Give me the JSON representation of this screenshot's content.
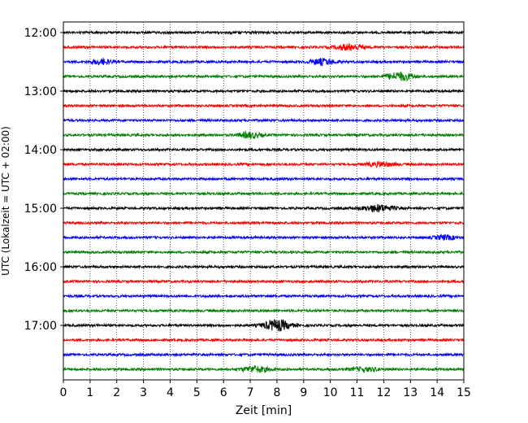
{
  "chart_data": {
    "type": "line",
    "xlabel": "Zeit  [min]",
    "ylabel": "UTC (Lokalzeit = UTC + 02:00)",
    "xlim": [
      0,
      15
    ],
    "x_ticks": [
      0,
      1,
      2,
      3,
      4,
      5,
      6,
      7,
      8,
      9,
      10,
      11,
      12,
      13,
      14,
      15
    ],
    "x_tick_labels": [
      "0",
      "1",
      "2",
      "3",
      "4",
      "5",
      "6",
      "7",
      "8",
      "9",
      "10",
      "11",
      "12",
      "13",
      "14",
      "15"
    ],
    "y_tick_labels": [
      "12:00",
      "13:00",
      "14:00",
      "15:00",
      "16:00",
      "17:00"
    ],
    "y_tick_rows": [
      0,
      4,
      8,
      12,
      16,
      20
    ],
    "grid": "vertical-dotted",
    "row_interval_minutes": 15,
    "trace_colors": [
      "#000000",
      "#ff0000",
      "#0000ff",
      "#008000"
    ],
    "traces": [
      {
        "start": "12:00",
        "bursts": []
      },
      {
        "start": "12:15",
        "bursts": [
          {
            "t": 10.7,
            "amp": 3.5,
            "width": 0.5
          }
        ]
      },
      {
        "start": "12:30",
        "bursts": [
          {
            "t": 1.4,
            "amp": 3.0,
            "width": 0.4
          },
          {
            "t": 9.7,
            "amp": 3.5,
            "width": 0.45
          }
        ]
      },
      {
        "start": "12:45",
        "bursts": [
          {
            "t": 12.6,
            "amp": 5.0,
            "width": 0.5
          }
        ]
      },
      {
        "start": "13:00",
        "bursts": []
      },
      {
        "start": "13:15",
        "bursts": []
      },
      {
        "start": "13:30",
        "bursts": []
      },
      {
        "start": "13:45",
        "bursts": [
          {
            "t": 7.0,
            "amp": 3.5,
            "width": 0.4
          }
        ]
      },
      {
        "start": "14:00",
        "bursts": []
      },
      {
        "start": "14:15",
        "bursts": [
          {
            "t": 11.9,
            "amp": 2.5,
            "width": 0.5
          }
        ]
      },
      {
        "start": "14:30",
        "bursts": []
      },
      {
        "start": "14:45",
        "bursts": []
      },
      {
        "start": "15:00",
        "bursts": [
          {
            "t": 11.8,
            "amp": 4.0,
            "width": 0.55
          }
        ]
      },
      {
        "start": "15:15",
        "bursts": []
      },
      {
        "start": "15:30",
        "bursts": [
          {
            "t": 14.3,
            "amp": 2.5,
            "width": 0.4
          }
        ]
      },
      {
        "start": "15:45",
        "bursts": []
      },
      {
        "start": "16:00",
        "bursts": []
      },
      {
        "start": "16:15",
        "bursts": []
      },
      {
        "start": "16:30",
        "bursts": []
      },
      {
        "start": "16:45",
        "bursts": []
      },
      {
        "start": "17:00",
        "bursts": [
          {
            "t": 8.0,
            "amp": 6.5,
            "width": 0.5
          }
        ]
      },
      {
        "start": "17:15",
        "bursts": []
      },
      {
        "start": "17:30",
        "bursts": []
      },
      {
        "start": "17:45",
        "bursts": [
          {
            "t": 7.2,
            "amp": 3.5,
            "width": 0.5
          },
          {
            "t": 11.3,
            "amp": 2.0,
            "width": 0.6
          }
        ]
      }
    ]
  }
}
